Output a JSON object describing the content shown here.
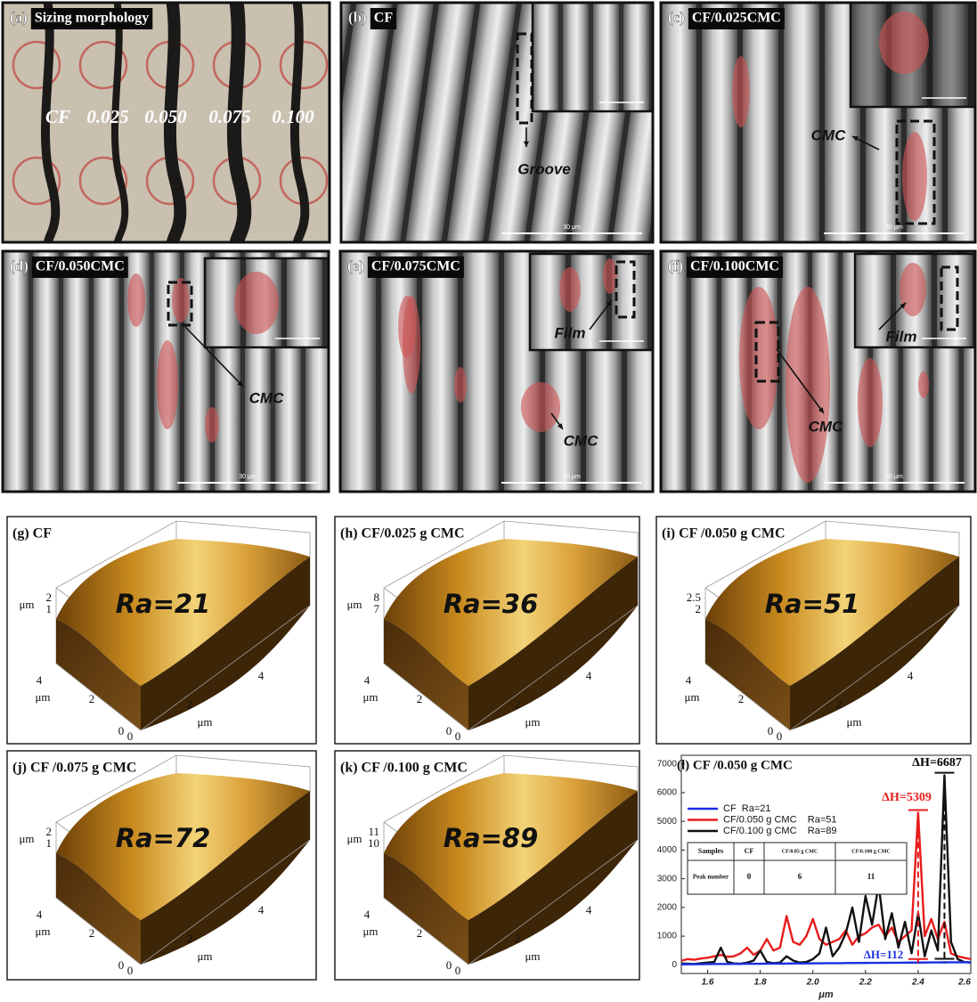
{
  "sem_panels": [
    {
      "label": "(a)",
      "title": "Sizing morphology",
      "samples": [
        "CF",
        "0.025",
        "0.050",
        "0.075",
        "0.100"
      ]
    },
    {
      "label": "(b)",
      "title": "CF",
      "annotation": "Groove",
      "scale_bar": "30 μm"
    },
    {
      "label": "(c)",
      "title": "CF/0.025CMC",
      "annotation": "CMC",
      "scale_bar": "30 μm"
    },
    {
      "label": "(d)",
      "title": "CF/0.050CMC",
      "annotation": "CMC",
      "scale_bar": "30 μm"
    },
    {
      "label": "(e)",
      "title": "CF/0.075CMC",
      "annotation": "CMC",
      "inset_annotation": "Film",
      "scale_bar": "30 μm"
    },
    {
      "label": "(f)",
      "title": "CF/0.100CMC",
      "annotation": "CMC",
      "inset_annotation": "Film",
      "scale_bar": "30 μm"
    }
  ],
  "afm_panels": [
    {
      "title": "(g) CF",
      "roughness": "Ra=21",
      "z_ticks": [
        "2",
        "1"
      ],
      "z_unit": "μm",
      "y_ticks": [
        "4",
        "2",
        "0"
      ],
      "x_ticks": [
        "0",
        "2",
        "4"
      ],
      "axis_unit": "μm"
    },
    {
      "title": "(h) CF/0.025 g CMC",
      "roughness": "Ra=36",
      "z_ticks": [
        "8",
        "7"
      ],
      "z_unit": "μm",
      "y_ticks": [
        "4",
        "2",
        "0"
      ],
      "x_ticks": [
        "0",
        "2",
        "4"
      ],
      "axis_unit": "μm"
    },
    {
      "title": "(i) CF /0.050 g CMC",
      "roughness": "Ra=51",
      "z_ticks": [
        "2.5",
        "2"
      ],
      "y_ticks": [
        "4",
        "2",
        "0"
      ],
      "x_ticks": [
        "0",
        "2",
        "4"
      ],
      "axis_unit": "μm"
    },
    {
      "title": "(j) CF /0.075 g CMC",
      "roughness": "Ra=72",
      "z_ticks": [
        "2",
        "1"
      ],
      "z_unit": "μm",
      "y_ticks": [
        "4",
        "2",
        "0"
      ],
      "x_ticks": [
        "0",
        "2",
        "4"
      ],
      "axis_unit": "μm"
    },
    {
      "title": "(k) CF /0.100 g CMC",
      "roughness": "Ra=89",
      "z_ticks": [
        "11",
        "10"
      ],
      "z_unit": "μm",
      "y_ticks": [
        "4",
        "2",
        "0"
      ],
      "x_ticks": [
        "0",
        "2",
        "4"
      ],
      "axis_unit": "μm"
    }
  ],
  "chart_data": {
    "type": "line",
    "title": "(l) CF /0.050 g CMC",
    "xlabel": "μm",
    "x": [
      1.5,
      1.525,
      1.55,
      1.575,
      1.6,
      1.625,
      1.65,
      1.675,
      1.7,
      1.725,
      1.75,
      1.775,
      1.8,
      1.825,
      1.85,
      1.875,
      1.9,
      1.925,
      1.95,
      1.975,
      2.0,
      2.025,
      2.05,
      2.075,
      2.1,
      2.125,
      2.15,
      2.175,
      2.2,
      2.225,
      2.25,
      2.275,
      2.3,
      2.325,
      2.35,
      2.375,
      2.4,
      2.425,
      2.45,
      2.475,
      2.5,
      2.525,
      2.55,
      2.575,
      2.6
    ],
    "series": [
      {
        "name": "CF  Ra=21",
        "color": "#1a2ee0",
        "values": [
          20,
          22,
          25,
          25,
          28,
          30,
          30,
          32,
          35,
          35,
          38,
          40,
          40,
          42,
          45,
          45,
          48,
          50,
          50,
          52,
          55,
          55,
          58,
          60,
          60,
          62,
          65,
          65,
          68,
          70,
          70,
          72,
          75,
          75,
          78,
          80,
          80,
          82,
          85,
          85,
          88,
          90,
          90,
          92,
          95
        ]
      },
      {
        "name": "CF/0.050 g CMC    Ra=51",
        "color": "#e81c1c",
        "values": [
          150,
          200,
          180,
          220,
          250,
          300,
          350,
          280,
          300,
          400,
          600,
          350,
          500,
          900,
          500,
          600,
          1700,
          800,
          700,
          1000,
          1600,
          900,
          700,
          800,
          900,
          1200,
          700,
          1000,
          1100,
          1300,
          1400,
          1000,
          1300,
          800,
          1000,
          1200,
          5300,
          1000,
          1600,
          900,
          1500,
          400,
          300,
          250,
          200
        ]
      },
      {
        "name": "CF/0.100 g CMC    Ra=89",
        "color": "#111111",
        "values": [
          50,
          40,
          30,
          60,
          80,
          100,
          600,
          100,
          50,
          40,
          80,
          150,
          500,
          100,
          60,
          80,
          300,
          150,
          80,
          100,
          200,
          400,
          1300,
          300,
          600,
          1100,
          2000,
          800,
          2400,
          1400,
          2800,
          900,
          1800,
          600,
          1500,
          400,
          1800,
          300,
          1200,
          500,
          6600,
          800,
          200,
          100,
          80
        ]
      }
    ],
    "xlim": [
      1.5,
      2.6
    ],
    "ylim": [
      -300,
      7300
    ],
    "xticks": [
      1.6,
      1.8,
      {
        "value": 2,
        "label": "2.0"
      },
      2.2,
      2.4,
      2.6
    ],
    "yticks": [
      0,
      1000,
      2000,
      3000,
      4000,
      5000,
      6000,
      7000
    ],
    "annotations": [
      "ΔH=6687",
      "ΔH=5309",
      "ΔH=112"
    ],
    "table": {
      "header": [
        "Samples",
        "CF",
        "CF/0.05 g CMC",
        "CF/0.100 g CMC"
      ],
      "rows": [
        [
          "Peak number",
          "0",
          "6",
          "11"
        ]
      ]
    }
  }
}
